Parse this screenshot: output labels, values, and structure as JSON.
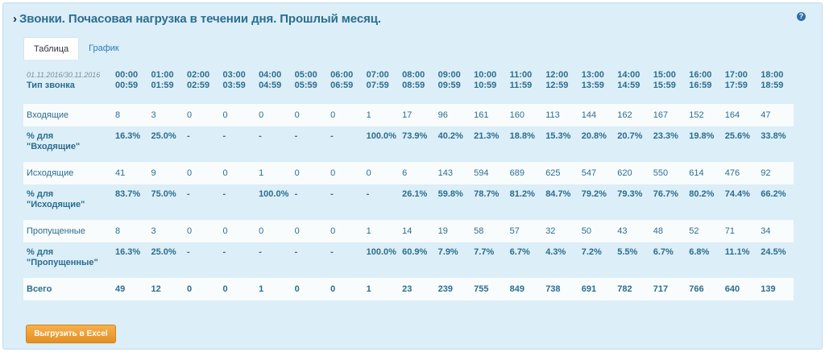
{
  "header": {
    "title": "Звонки. Почасовая нагрузка в течении дня. Прошлый месяц.",
    "help": "?"
  },
  "tabs": [
    {
      "label": "Таблица",
      "active": true
    },
    {
      "label": "График",
      "active": false
    }
  ],
  "table": {
    "period": "01.11.2016/30.11.2016",
    "type_label": "Тип звонка",
    "hours": [
      [
        "00:00",
        "00:59"
      ],
      [
        "01:00",
        "01:59"
      ],
      [
        "02:00",
        "02:59"
      ],
      [
        "03:00",
        "03:59"
      ],
      [
        "04:00",
        "04:59"
      ],
      [
        "05:00",
        "05:59"
      ],
      [
        "06:00",
        "06:59"
      ],
      [
        "07:00",
        "07:59"
      ],
      [
        "08:00",
        "08:59"
      ],
      [
        "09:00",
        "09:59"
      ],
      [
        "10:00",
        "10:59"
      ],
      [
        "11:00",
        "11:59"
      ],
      [
        "12:00",
        "12:59"
      ],
      [
        "13:00",
        "13:59"
      ],
      [
        "14:00",
        "14:59"
      ],
      [
        "15:00",
        "15:59"
      ],
      [
        "16:00",
        "16:59"
      ],
      [
        "17:00",
        "17:59"
      ],
      [
        "18:00",
        "18:59"
      ]
    ],
    "rows": [
      {
        "label": [
          "Входящие"
        ],
        "kind": "count",
        "values": [
          "8",
          "3",
          "0",
          "0",
          "0",
          "0",
          "0",
          "1",
          "17",
          "96",
          "161",
          "160",
          "113",
          "144",
          "162",
          "167",
          "152",
          "164",
          "47"
        ]
      },
      {
        "label": [
          "% для",
          "\"Входящие\""
        ],
        "kind": "pct",
        "values": [
          "16.3%",
          "25.0%",
          "-",
          "-",
          "-",
          "-",
          "-",
          "100.0%",
          "73.9%",
          "40.2%",
          "21.3%",
          "18.8%",
          "15.3%",
          "20.8%",
          "20.7%",
          "23.3%",
          "19.8%",
          "25.6%",
          "33.8%"
        ]
      },
      {
        "label": [
          "Исходящие"
        ],
        "kind": "count",
        "values": [
          "41",
          "9",
          "0",
          "0",
          "1",
          "0",
          "0",
          "0",
          "6",
          "143",
          "594",
          "689",
          "625",
          "547",
          "620",
          "550",
          "614",
          "476",
          "92"
        ]
      },
      {
        "label": [
          "% для",
          "\"Исходящие\""
        ],
        "kind": "pct",
        "values": [
          "83.7%",
          "75.0%",
          "-",
          "-",
          "100.0%",
          "-",
          "-",
          "-",
          "26.1%",
          "59.8%",
          "78.7%",
          "81.2%",
          "84.7%",
          "79.2%",
          "79.3%",
          "76.7%",
          "80.2%",
          "74.4%",
          "66.2%"
        ]
      },
      {
        "label": [
          "Пропущенные"
        ],
        "kind": "count",
        "values": [
          "8",
          "3",
          "0",
          "0",
          "0",
          "0",
          "0",
          "1",
          "14",
          "19",
          "58",
          "57",
          "32",
          "50",
          "43",
          "48",
          "52",
          "71",
          "34"
        ]
      },
      {
        "label": [
          "% для",
          "\"Пропущенные\""
        ],
        "kind": "pct",
        "values": [
          "16.3%",
          "25.0%",
          "-",
          "-",
          "-",
          "-",
          "-",
          "100.0%",
          "60.9%",
          "7.9%",
          "7.7%",
          "6.7%",
          "4.3%",
          "7.2%",
          "5.5%",
          "6.7%",
          "6.8%",
          "11.1%",
          "24.5%"
        ]
      },
      {
        "label": [
          "Всего"
        ],
        "kind": "total",
        "values": [
          "49",
          "12",
          "0",
          "0",
          "1",
          "0",
          "0",
          "1",
          "23",
          "239",
          "755",
          "849",
          "738",
          "691",
          "782",
          "717",
          "766",
          "640",
          "139"
        ]
      }
    ]
  },
  "export_button": {
    "label": "Выгрузить в Excel"
  },
  "colors": {
    "accent": "#2c6d8f",
    "panel_bg": "#dceef7",
    "button": "#f0a43a"
  }
}
